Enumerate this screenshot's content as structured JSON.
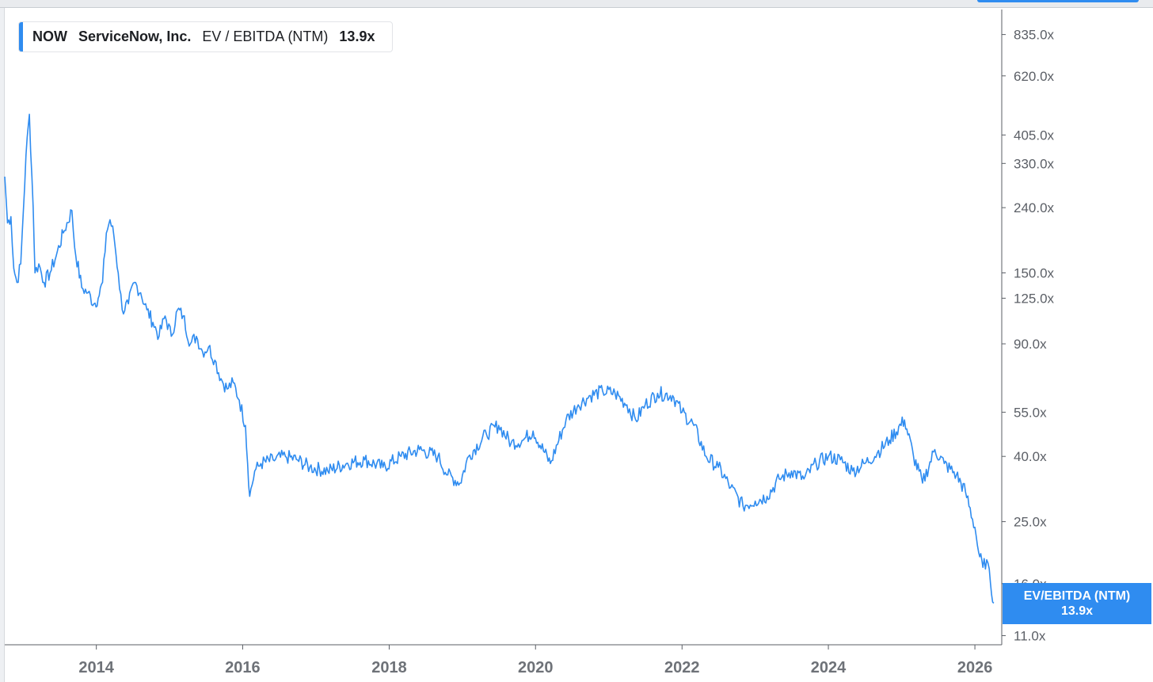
{
  "legend": {
    "ticker": "NOW",
    "company": "ServiceNow, Inc.",
    "metric": "EV / EBITDA (NTM)",
    "value": "13.9x"
  },
  "current_flag": {
    "label": "EV/EBITDA (NTM)",
    "value": "13.9x"
  },
  "colors": {
    "series": "#2f8cf0",
    "axis": "#5b5f66"
  },
  "chart_data": {
    "type": "line",
    "title": "",
    "xlabel": "",
    "ylabel": "",
    "y_scale": "log",
    "ylim": [
      10.3,
      1000
    ],
    "xlim": [
      "2012-10-01",
      "2026-05-15"
    ],
    "y_ticks": [
      {
        "value": 835,
        "label": "835.0x"
      },
      {
        "value": 620,
        "label": "620.0x"
      },
      {
        "value": 405,
        "label": "405.0x"
      },
      {
        "value": 330,
        "label": "330.0x"
      },
      {
        "value": 240,
        "label": "240.0x"
      },
      {
        "value": 150,
        "label": "150.0x"
      },
      {
        "value": 125,
        "label": "125.0x"
      },
      {
        "value": 90,
        "label": "90.0x"
      },
      {
        "value": 55,
        "label": "55.0x"
      },
      {
        "value": 40,
        "label": "40.0x"
      },
      {
        "value": 25,
        "label": "25.0x"
      },
      {
        "value": 16,
        "label": "16.0x"
      },
      {
        "value": 11,
        "label": "11.0x"
      }
    ],
    "x_ticks": [
      {
        "value": "2014-01-01",
        "label": "2014"
      },
      {
        "value": "2016-01-01",
        "label": "2016"
      },
      {
        "value": "2018-01-01",
        "label": "2018"
      },
      {
        "value": "2020-01-01",
        "label": "2020"
      },
      {
        "value": "2022-01-01",
        "label": "2022"
      },
      {
        "value": "2024-01-01",
        "label": "2024"
      },
      {
        "value": "2026-01-01",
        "label": "2026"
      }
    ],
    "series": [
      {
        "points": [
          [
            "2012-10-01",
            300
          ],
          [
            "2012-10-15",
            215
          ],
          [
            "2012-11-01",
            225
          ],
          [
            "2012-11-15",
            155
          ],
          [
            "2012-12-01",
            140
          ],
          [
            "2012-12-20",
            160
          ],
          [
            "2013-01-15",
            350
          ],
          [
            "2013-02-01",
            470
          ],
          [
            "2013-02-20",
            240
          ],
          [
            "2013-03-01",
            150
          ],
          [
            "2013-03-20",
            160
          ],
          [
            "2013-04-15",
            140
          ],
          [
            "2013-05-15",
            150
          ],
          [
            "2013-06-15",
            170
          ],
          [
            "2013-07-20",
            200
          ],
          [
            "2013-09-01",
            235
          ],
          [
            "2013-09-15",
            180
          ],
          [
            "2013-10-20",
            135
          ],
          [
            "2013-11-20",
            130
          ],
          [
            "2013-12-20",
            120
          ],
          [
            "2014-01-10",
            125
          ],
          [
            "2014-02-01",
            140
          ],
          [
            "2014-02-20",
            200
          ],
          [
            "2014-03-10",
            220
          ],
          [
            "2014-03-30",
            195
          ],
          [
            "2014-04-20",
            150
          ],
          [
            "2014-05-10",
            115
          ],
          [
            "2014-06-10",
            120
          ],
          [
            "2014-07-10",
            140
          ],
          [
            "2014-08-10",
            130
          ],
          [
            "2014-09-10",
            115
          ],
          [
            "2014-10-10",
            105
          ],
          [
            "2014-11-10",
            95
          ],
          [
            "2014-12-10",
            110
          ],
          [
            "2015-01-10",
            95
          ],
          [
            "2015-02-10",
            115
          ],
          [
            "2015-03-10",
            110
          ],
          [
            "2015-04-15",
            90
          ],
          [
            "2015-05-15",
            95
          ],
          [
            "2015-06-15",
            85
          ],
          [
            "2015-07-15",
            88
          ],
          [
            "2015-08-15",
            80
          ],
          [
            "2015-09-15",
            70
          ],
          [
            "2015-10-15",
            65
          ],
          [
            "2015-11-15",
            68
          ],
          [
            "2015-12-15",
            60
          ],
          [
            "2016-01-15",
            50
          ],
          [
            "2016-02-05",
            30
          ],
          [
            "2016-03-01",
            36
          ],
          [
            "2016-04-01",
            38
          ],
          [
            "2016-06-01",
            39
          ],
          [
            "2016-08-01",
            40
          ],
          [
            "2016-10-01",
            39
          ],
          [
            "2016-12-01",
            37
          ],
          [
            "2017-03-01",
            36
          ],
          [
            "2017-06-01",
            38
          ],
          [
            "2017-09-01",
            39
          ],
          [
            "2017-12-01",
            37
          ],
          [
            "2018-03-01",
            40
          ],
          [
            "2018-06-01",
            42
          ],
          [
            "2018-09-01",
            40
          ],
          [
            "2018-10-20",
            35
          ],
          [
            "2018-12-20",
            33
          ],
          [
            "2019-02-01",
            40
          ],
          [
            "2019-05-01",
            47
          ],
          [
            "2019-07-01",
            50
          ],
          [
            "2019-09-01",
            44
          ],
          [
            "2019-11-01",
            45
          ],
          [
            "2019-12-20",
            48
          ],
          [
            "2020-03-15",
            38
          ],
          [
            "2020-06-01",
            52
          ],
          [
            "2020-08-01",
            58
          ],
          [
            "2020-10-01",
            62
          ],
          [
            "2020-12-01",
            64
          ],
          [
            "2021-02-01",
            63
          ],
          [
            "2021-04-01",
            58
          ],
          [
            "2021-05-15",
            52
          ],
          [
            "2021-07-01",
            58
          ],
          [
            "2021-09-01",
            63
          ],
          [
            "2021-11-15",
            62
          ],
          [
            "2022-01-01",
            55
          ],
          [
            "2022-03-01",
            50
          ],
          [
            "2022-05-01",
            40
          ],
          [
            "2022-07-01",
            37
          ],
          [
            "2022-09-01",
            32
          ],
          [
            "2022-11-01",
            28
          ],
          [
            "2023-01-01",
            29
          ],
          [
            "2023-03-01",
            30
          ],
          [
            "2023-05-01",
            34
          ],
          [
            "2023-07-01",
            36
          ],
          [
            "2023-09-01",
            34
          ],
          [
            "2023-11-01",
            38
          ],
          [
            "2024-01-01",
            40
          ],
          [
            "2024-03-01",
            39
          ],
          [
            "2024-05-01",
            36
          ],
          [
            "2024-07-01",
            38
          ],
          [
            "2024-09-01",
            41
          ],
          [
            "2024-11-01",
            45
          ],
          [
            "2025-01-15",
            52
          ],
          [
            "2025-03-01",
            40
          ],
          [
            "2025-04-15",
            33
          ],
          [
            "2025-06-15",
            42
          ],
          [
            "2025-08-01",
            38
          ],
          [
            "2025-10-01",
            35
          ],
          [
            "2025-11-15",
            31
          ],
          [
            "2026-01-01",
            24
          ],
          [
            "2026-01-20",
            20
          ],
          [
            "2026-02-10",
            18
          ],
          [
            "2026-03-01",
            19
          ],
          [
            "2026-03-20",
            16
          ],
          [
            "2026-04-05",
            13.9
          ]
        ]
      }
    ]
  }
}
